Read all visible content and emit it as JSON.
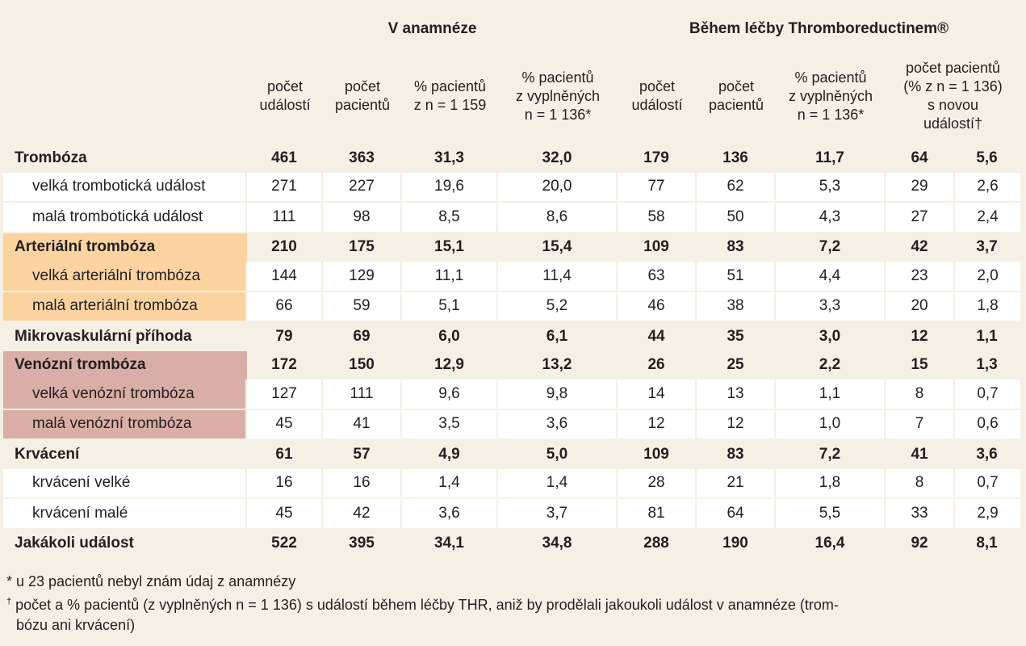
{
  "header": {
    "group_history": "V anamnéze",
    "group_treatment": "Během léčby Thromboreductinem®",
    "cols": [
      "počet\nudálostí",
      "počet\npacientů",
      "% pacientů\nz n = 1 159",
      "% pacientů\nz vyplněných\nn = 1 136*",
      "počet\nudálostí",
      "počet\npacientů",
      "% pacientů\nz vyplněných\nn = 1 136*",
      "počet pacientů\n(% z n = 1 136)\ns novou\nudálostí†"
    ]
  },
  "rows": [
    {
      "label": "Trombóza",
      "v": [
        "461",
        "363",
        "31,3",
        "32,0",
        "179",
        "136",
        "11,7",
        "64",
        "5,6"
      ]
    },
    {
      "label": "velká trombotická událost",
      "v": [
        "271",
        "227",
        "19,6",
        "20,0",
        "77",
        "62",
        "5,3",
        "29",
        "2,6"
      ]
    },
    {
      "label": "malá trombotická událost",
      "v": [
        "111",
        "98",
        "8,5",
        "8,6",
        "58",
        "50",
        "4,3",
        "27",
        "2,4"
      ]
    },
    {
      "label": "Arteriální trombóza",
      "v": [
        "210",
        "175",
        "15,1",
        "15,4",
        "109",
        "83",
        "7,2",
        "42",
        "3,7"
      ]
    },
    {
      "label": "velká arteriální trombóza",
      "v": [
        "144",
        "129",
        "11,1",
        "11,4",
        "63",
        "51",
        "4,4",
        "23",
        "2,0"
      ]
    },
    {
      "label": "malá arteriální trombóza",
      "v": [
        "66",
        "59",
        "5,1",
        "5,2",
        "46",
        "38",
        "3,3",
        "20",
        "1,8"
      ]
    },
    {
      "label": "Mikrovaskulární příhoda",
      "v": [
        "79",
        "69",
        "6,0",
        "6,1",
        "44",
        "35",
        "3,0",
        "12",
        "1,1"
      ]
    },
    {
      "label": "Venózní trombóza",
      "v": [
        "172",
        "150",
        "12,9",
        "13,2",
        "26",
        "25",
        "2,2",
        "15",
        "1,3"
      ]
    },
    {
      "label": "velká venózní trombóza",
      "v": [
        "127",
        "111",
        "9,6",
        "9,8",
        "14",
        "13",
        "1,1",
        "8",
        "0,7"
      ]
    },
    {
      "label": "malá venózní trombóza",
      "v": [
        "45",
        "41",
        "3,5",
        "3,6",
        "12",
        "12",
        "1,0",
        "7",
        "0,6"
      ]
    },
    {
      "label": "Krvácení",
      "v": [
        "61",
        "57",
        "4,9",
        "5,0",
        "109",
        "83",
        "7,2",
        "41",
        "3,6"
      ]
    },
    {
      "label": "krvácení velké",
      "v": [
        "16",
        "16",
        "1,4",
        "1,4",
        "28",
        "21",
        "1,8",
        "8",
        "0,7"
      ]
    },
    {
      "label": "krvácení malé",
      "v": [
        "45",
        "42",
        "3,6",
        "3,7",
        "81",
        "64",
        "5,5",
        "33",
        "2,9"
      ]
    },
    {
      "label": "Jakákoli událost",
      "v": [
        "522",
        "395",
        "34,1",
        "34,8",
        "288",
        "190",
        "16,4",
        "92",
        "8,1"
      ]
    }
  ],
  "notes": {
    "n1": "* u 23 pacientů nebyl znám údaj z anamnézy",
    "n2_mark": "†",
    "n2": " počet a % pacientů (z vyplněných n = 1 136) s událostí během léčby THR, aniž by prodělali jakoukoli událost v anamnéze (trom-",
    "n2_cont": "bózu ani krvácení)"
  },
  "colors": {
    "background": "#f5f0e6",
    "arterial_highlight": "#fbd3a1",
    "venous_highlight": "#d9aea6",
    "cell_white": "#ffffff"
  }
}
